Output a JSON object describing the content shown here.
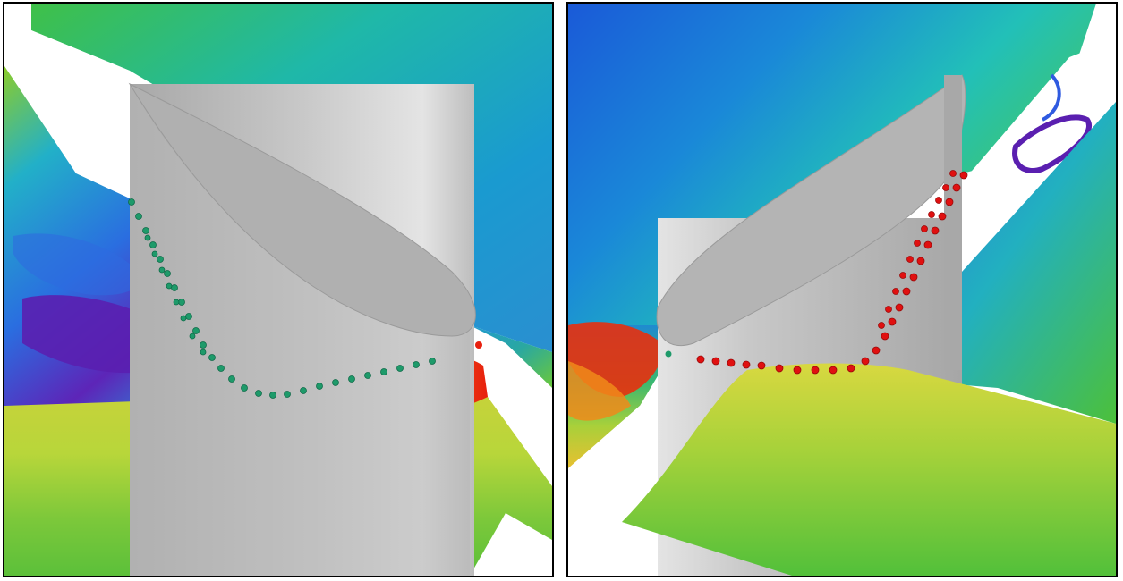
{
  "figure": {
    "panels": [
      {
        "id": "left",
        "marker_color": "#1e9a6a",
        "wall_color": "#b4b4b4"
      },
      {
        "id": "right",
        "marker_color": "#e01010",
        "wall_color": "#b4b4b4"
      }
    ],
    "palette": {
      "violet": "#5a1fb0",
      "blue": "#1f5fd8",
      "cyan": "#1fc0d0",
      "green": "#4fc43a",
      "yellow": "#d8dc3a",
      "orange": "#f08a1a",
      "red": "#e8200e"
    }
  }
}
